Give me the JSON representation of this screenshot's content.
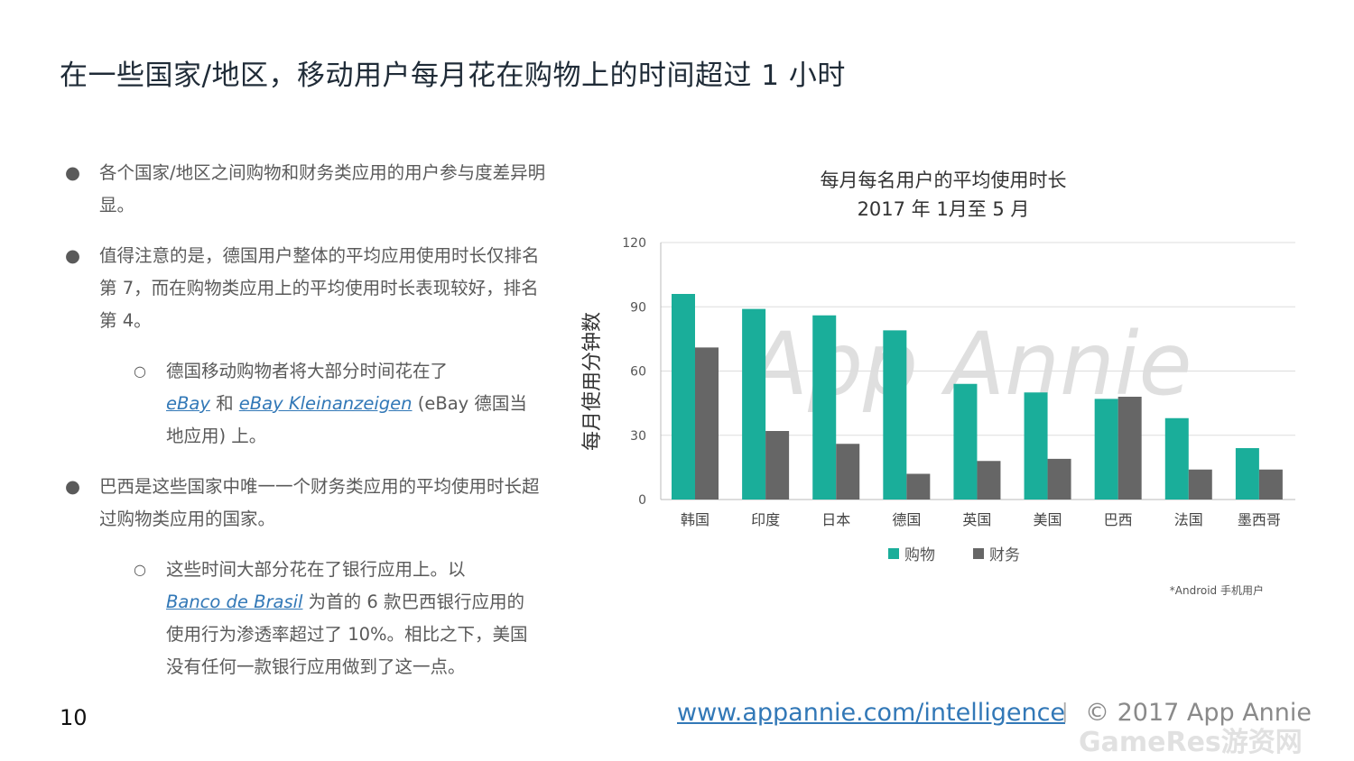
{
  "title": "在一些国家/地区，移动用户每月花在购物上的时间超过 1 小时",
  "bullets": {
    "b1": "各个国家/地区之间购物和财务类应用的用户参与度差异明显。",
    "b2": "值得注意的是，德国用户整体的平均应用使用时长仅排名第 7，而在购物类应用上的平均使用时长表现较好，排名第 4。",
    "sub1_pre": "德国移动购物者将大部分时间花在了",
    "sub1_link1": "eBay",
    "sub1_mid": " 和 ",
    "sub1_link2": "eBay Kleinanzeigen",
    "sub1_post": " (eBay 德国当地应用) 上。",
    "b3": "巴西是这些国家中唯一一个财务类应用的平均使用时长超过购物类应用的国家。",
    "sub2_pre": "这些时间大部分花在了银行应用上。以",
    "sub2_link": "Banco de Brasil",
    "sub2_post": " 为首的 6 款巴西银行应用的使用行为渗透率超过了 10%。相比之下，美国没有任何一款银行应用做到了这一点。",
    "dot": "●",
    "circle": "○"
  },
  "chart_data": {
    "type": "bar",
    "title": "每月每名用户的平均使用时长",
    "subtitle": "2017 年 1月至 5 月",
    "ylabel": "每月使用分钟数",
    "xlabel": "",
    "categories": [
      "韩国",
      "印度",
      "日本",
      "德国",
      "英国",
      "美国",
      "巴西",
      "法国",
      "墨西哥"
    ],
    "series": [
      {
        "name": "购物",
        "color": "#1aae9a",
        "values": [
          96,
          89,
          86,
          79,
          54,
          50,
          47,
          38,
          24
        ]
      },
      {
        "name": "财务",
        "color": "#666666",
        "values": [
          71,
          32,
          26,
          12,
          18,
          19,
          48,
          14,
          14
        ]
      }
    ],
    "ylim": [
      0,
      120
    ],
    "yticks": [
      0,
      30,
      60,
      90,
      120
    ],
    "grid": true,
    "legend": "bottom",
    "watermark": "App Annie",
    "footnote": "*Android 手机用户"
  },
  "footer": {
    "page": "10",
    "url": "www.appannie.com/intelligence",
    "sep": "|",
    "copyright": "© 2017 App Annie",
    "site_watermark": "GameRes游资网"
  }
}
